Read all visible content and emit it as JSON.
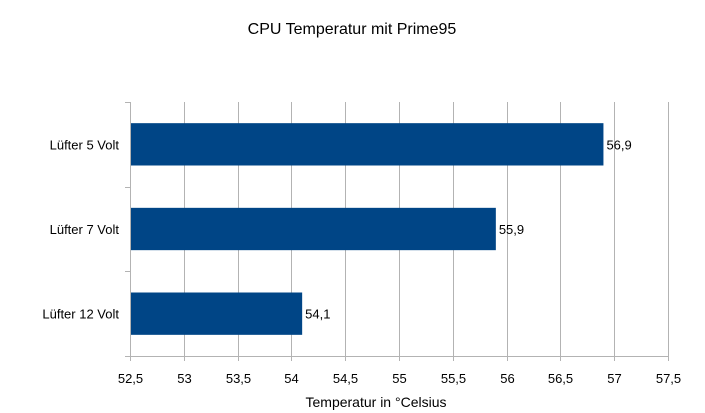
{
  "chart_data": {
    "type": "bar",
    "orientation": "horizontal",
    "title": "CPU Temperatur mit Prime95",
    "xlabel": "Temperatur in °Celsius",
    "ylabel": "",
    "categories": [
      "Lüfter 5 Volt",
      "Lüfter 7 Volt",
      "Lüfter 12 Volt"
    ],
    "values": [
      56.9,
      55.9,
      54.1
    ],
    "data_labels": [
      "56,9",
      "55,9",
      "54,1"
    ],
    "xlim": [
      52.5,
      57.5
    ],
    "x_ticks": [
      52.5,
      53,
      53.5,
      54,
      54.5,
      55,
      55.5,
      56,
      56.5,
      57,
      57.5
    ],
    "x_tick_labels": [
      "52,5",
      "53",
      "53,5",
      "54",
      "54,5",
      "55",
      "55,5",
      "56",
      "56,5",
      "57",
      "57,5"
    ],
    "grid": "vertical",
    "legend": "none",
    "colors": {
      "bar": "#004586",
      "grid": "#b3b3b3",
      "axis": "#b3b3b3",
      "text": "#000000"
    }
  }
}
